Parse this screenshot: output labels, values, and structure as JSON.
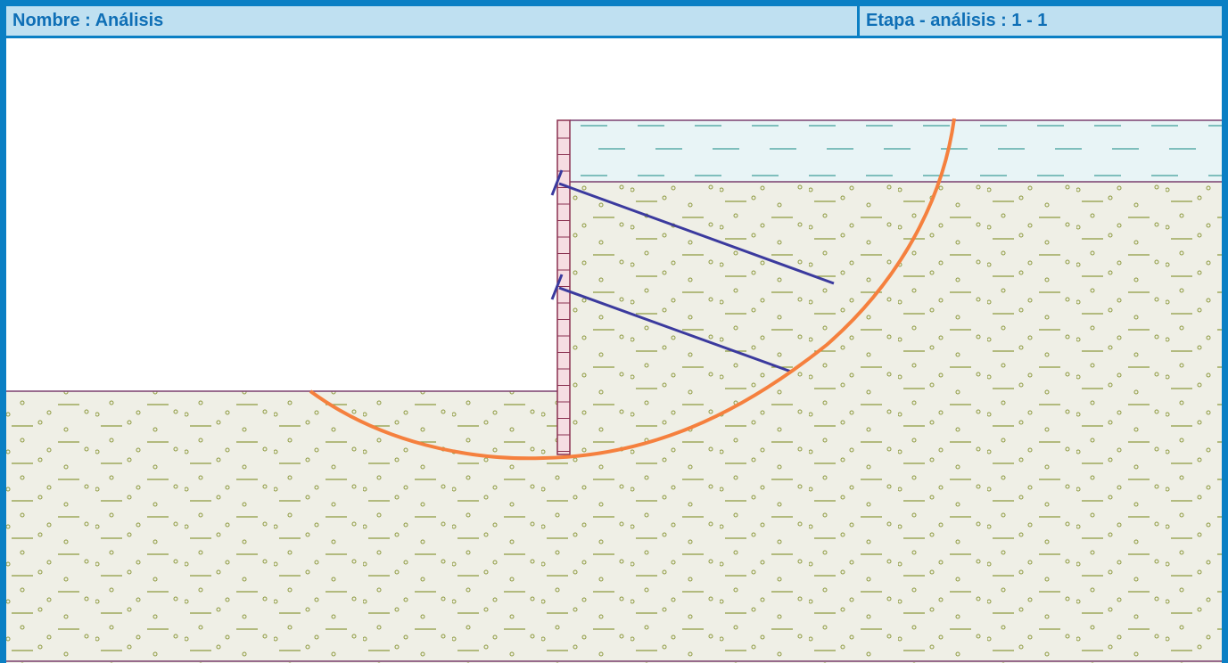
{
  "header": {
    "name_label": "Nombre : Análisis",
    "stage_label": "Etapa - análisis : 1 - 1"
  },
  "colors": {
    "frame": "#0a7fc4",
    "header_bg": "#bfe0f1",
    "header_text": "#0f6fb6",
    "soil_fill": "#efefe6",
    "soil_hatch": "#8e9a40",
    "soil_boundary": "#7a3f6f",
    "water_fill": "#e8f4f6",
    "water_hatch": "#3f9f9a",
    "wall_fill": "#f6dde2",
    "wall_line": "#8a3050",
    "anchor": "#3b3a9e",
    "slip_surface": "#f5803e"
  },
  "icons": [
    "soil-hatch-pattern",
    "water-hatch-pattern",
    "anchor-symbol"
  ]
}
